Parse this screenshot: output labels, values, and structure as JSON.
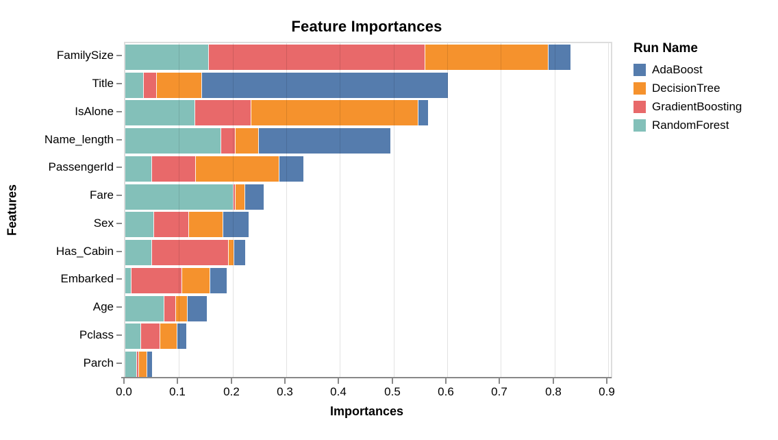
{
  "title": "Feature Importances",
  "legend": {
    "title": "Run Name"
  },
  "axes": {
    "x_title": "Importances",
    "y_title": "Features",
    "x_tick_labels": [
      "0.0",
      "0.1",
      "0.2",
      "0.3",
      "0.4",
      "0.5",
      "0.6",
      "0.7",
      "0.8",
      "0.9"
    ]
  },
  "chart_data": {
    "type": "bar",
    "stacked": true,
    "orientation": "horizontal",
    "title": "Feature Importances",
    "xlabel": "Importances",
    "ylabel": "Features",
    "xlim": [
      0,
      0.905
    ],
    "xticks": [
      0.0,
      0.1,
      0.2,
      0.3,
      0.4,
      0.5,
      0.6,
      0.7,
      0.8,
      0.9
    ],
    "grid": true,
    "legend_title": "Run Name",
    "legend_position": "top-right",
    "categories": [
      "FamilySize",
      "Title",
      "IsAlone",
      "Name_length",
      "PassengerId",
      "Fare",
      "Sex",
      "Has_Cabin",
      "Embarked",
      "Age",
      "Pclass",
      "Parch"
    ],
    "stack_order": [
      "RandomForest",
      "GradientBoosting",
      "DecisionTree",
      "AdaBoost"
    ],
    "series": [
      {
        "name": "AdaBoost",
        "color": "#557CAD",
        "values": [
          0.041,
          0.458,
          0.018,
          0.245,
          0.045,
          0.034,
          0.047,
          0.02,
          0.031,
          0.036,
          0.016,
          0.009
        ]
      },
      {
        "name": "DecisionTree",
        "color": "#F5922D",
        "values": [
          0.228,
          0.083,
          0.31,
          0.042,
          0.155,
          0.016,
          0.062,
          0.009,
          0.051,
          0.021,
          0.031,
          0.014
        ]
      },
      {
        "name": "GradientBoosting",
        "color": "#E8696A",
        "values": [
          0.402,
          0.023,
          0.104,
          0.026,
          0.081,
          0.003,
          0.064,
          0.142,
          0.093,
          0.02,
          0.034,
          0.003
        ]
      },
      {
        "name": "RandomForest",
        "color": "#83C0B9",
        "values": [
          0.155,
          0.033,
          0.129,
          0.177,
          0.049,
          0.2,
          0.052,
          0.048,
          0.01,
          0.072,
          0.028,
          0.021
        ]
      }
    ]
  }
}
